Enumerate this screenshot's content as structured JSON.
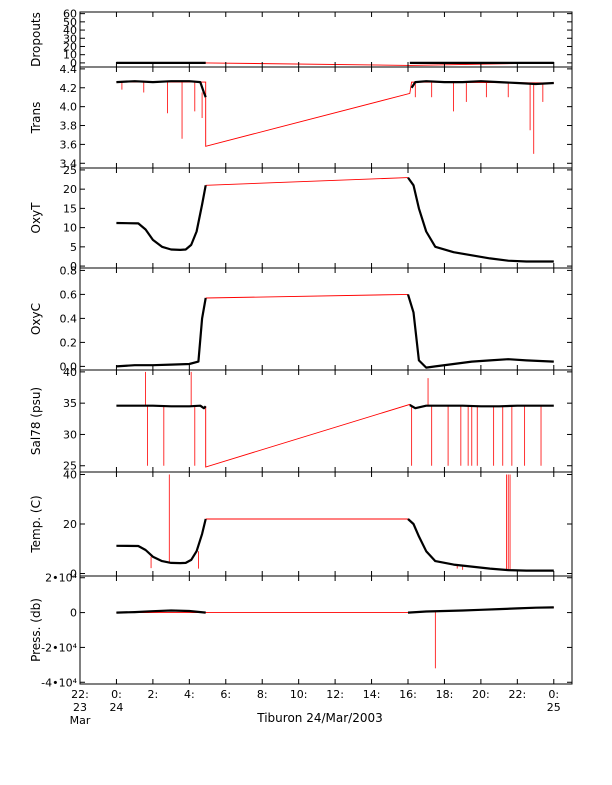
{
  "chart_data": {
    "type": "line",
    "xlabel": "Tiburon 24/Mar/2003",
    "xlim": [
      -2,
      25
    ],
    "x_ticks": [
      {
        "value": -2,
        "line1": "22:",
        "line2": "23",
        "line3": "Mar"
      },
      {
        "value": 0,
        "line1": "0:",
        "line2": "24",
        "line3": ""
      },
      {
        "value": 2,
        "line1": "2:",
        "line2": "",
        "line3": ""
      },
      {
        "value": 4,
        "line1": "4:",
        "line2": "",
        "line3": ""
      },
      {
        "value": 6,
        "line1": "6:",
        "line2": "",
        "line3": ""
      },
      {
        "value": 8,
        "line1": "8:",
        "line2": "",
        "line3": ""
      },
      {
        "value": 10,
        "line1": "10:",
        "line2": "",
        "line3": ""
      },
      {
        "value": 12,
        "line1": "12:",
        "line2": "",
        "line3": ""
      },
      {
        "value": 14,
        "line1": "14:",
        "line2": "",
        "line3": ""
      },
      {
        "value": 16,
        "line1": "16:",
        "line2": "",
        "line3": ""
      },
      {
        "value": 18,
        "line1": "18:",
        "line2": "",
        "line3": ""
      },
      {
        "value": 20,
        "line1": "20:",
        "line2": "",
        "line3": ""
      },
      {
        "value": 22,
        "line1": "22:",
        "line2": "",
        "line3": ""
      },
      {
        "value": 24,
        "line1": "0:",
        "line2": "25",
        "line3": ""
      }
    ],
    "colors": {
      "measured": "#000000",
      "raw": "#ff0000"
    },
    "panels": [
      {
        "ylabel": "Dropouts",
        "ylim": [
          -5,
          62
        ],
        "y_ticks": [
          {
            "value": 0,
            "label": "0"
          },
          {
            "value": 10,
            "label": "10"
          },
          {
            "value": 20,
            "label": "20"
          },
          {
            "value": 30,
            "label": "30"
          },
          {
            "value": 40,
            "label": "40"
          },
          {
            "value": 50,
            "label": "50"
          },
          {
            "value": 60,
            "label": "60"
          }
        ],
        "raw_line": [
          [
            0,
            0
          ],
          [
            4.9,
            0
          ],
          [
            16.1,
            -3
          ],
          [
            24,
            0
          ]
        ],
        "measured": [
          [
            0,
            0
          ],
          [
            1,
            0
          ],
          [
            2,
            0
          ],
          [
            3,
            0
          ],
          [
            4,
            0
          ],
          [
            4.9,
            0
          ],
          [
            16.1,
            0
          ],
          [
            17,
            0
          ],
          [
            18,
            0
          ],
          [
            19,
            0
          ],
          [
            20,
            0
          ],
          [
            21,
            0
          ],
          [
            22,
            0
          ],
          [
            23,
            0
          ],
          [
            24,
            0
          ]
        ],
        "spikes": []
      },
      {
        "ylabel": "Trans",
        "ylim": [
          3.35,
          4.42
        ],
        "y_ticks": [
          {
            "value": 3.4,
            "label": "3.4"
          },
          {
            "value": 3.6,
            "label": "3.6"
          },
          {
            "value": 3.8,
            "label": "3.8"
          },
          {
            "value": 4.0,
            "label": "4.0"
          },
          {
            "value": 4.2,
            "label": "4.2"
          },
          {
            "value": 4.4,
            "label": "4.4"
          }
        ],
        "raw_line": [
          [
            0,
            4.26
          ],
          [
            4.9,
            4.26
          ],
          [
            4.9,
            3.58
          ],
          [
            16.1,
            4.14
          ],
          [
            16.2,
            4.26
          ],
          [
            24,
            4.25
          ]
        ],
        "measured": [
          [
            0,
            4.26
          ],
          [
            1,
            4.27
          ],
          [
            2,
            4.26
          ],
          [
            3,
            4.27
          ],
          [
            4,
            4.27
          ],
          [
            4.6,
            4.26
          ],
          [
            4.8,
            4.15
          ],
          [
            4.9,
            4.1
          ],
          [
            16.2,
            4.2
          ],
          [
            16.4,
            4.26
          ],
          [
            17,
            4.27
          ],
          [
            18,
            4.26
          ],
          [
            19,
            4.26
          ],
          [
            20,
            4.27
          ],
          [
            21,
            4.26
          ],
          [
            22,
            4.25
          ],
          [
            23,
            4.24
          ],
          [
            24,
            4.25
          ]
        ],
        "spikes": [
          [
            0.3,
            4.18
          ],
          [
            1.5,
            4.15
          ],
          [
            2.8,
            3.93
          ],
          [
            3.6,
            3.66
          ],
          [
            4.3,
            3.95
          ],
          [
            4.7,
            3.88
          ],
          [
            16.4,
            4.1
          ],
          [
            17.3,
            4.1
          ],
          [
            18.5,
            3.95
          ],
          [
            19.2,
            4.05
          ],
          [
            20.3,
            4.1
          ],
          [
            21.5,
            4.1
          ],
          [
            22.7,
            3.75
          ],
          [
            22.9,
            3.5
          ],
          [
            23.4,
            4.05
          ]
        ]
      },
      {
        "ylabel": "OxyT",
        "ylim": [
          -0.5,
          25.5
        ],
        "y_ticks": [
          {
            "value": 0,
            "label": "0"
          },
          {
            "value": 5,
            "label": "5"
          },
          {
            "value": 10,
            "label": "10"
          },
          {
            "value": 15,
            "label": "15"
          },
          {
            "value": 20,
            "label": "20"
          },
          {
            "value": 25,
            "label": "25"
          }
        ],
        "raw_line": [
          [
            4.9,
            21
          ],
          [
            16.0,
            23
          ]
        ],
        "measured": [
          [
            0,
            11.2
          ],
          [
            1.2,
            11.1
          ],
          [
            1.6,
            9.5
          ],
          [
            2.0,
            6.8
          ],
          [
            2.5,
            5.0
          ],
          [
            3.0,
            4.3
          ],
          [
            3.5,
            4.2
          ],
          [
            3.8,
            4.3
          ],
          [
            4.1,
            5.5
          ],
          [
            4.4,
            9
          ],
          [
            4.7,
            16
          ],
          [
            4.9,
            21
          ],
          [
            16.0,
            23
          ],
          [
            16.3,
            21
          ],
          [
            16.6,
            15
          ],
          [
            17.0,
            9
          ],
          [
            17.5,
            5
          ],
          [
            18.5,
            3.6
          ],
          [
            19.5,
            2.8
          ],
          [
            20.5,
            2.0
          ],
          [
            21.5,
            1.4
          ],
          [
            22.5,
            1.2
          ],
          [
            24,
            1.2
          ]
        ],
        "spikes": []
      },
      {
        "ylabel": "OxyC",
        "ylim": [
          -0.03,
          0.82
        ],
        "y_ticks": [
          {
            "value": 0,
            "label": "0.0"
          },
          {
            "value": 0.2,
            "label": "0.2"
          },
          {
            "value": 0.4,
            "label": "0.4"
          },
          {
            "value": 0.6,
            "label": "0.6"
          },
          {
            "value": 0.8,
            "label": "0.8"
          }
        ],
        "raw_line": [
          [
            4.9,
            0.57
          ],
          [
            16.0,
            0.6
          ]
        ],
        "measured": [
          [
            0,
            0.0
          ],
          [
            1,
            0.01
          ],
          [
            2,
            0.01
          ],
          [
            3,
            0.015
          ],
          [
            4,
            0.02
          ],
          [
            4.5,
            0.04
          ],
          [
            4.7,
            0.4
          ],
          [
            4.9,
            0.57
          ],
          [
            16.0,
            0.6
          ],
          [
            16.3,
            0.45
          ],
          [
            16.6,
            0.05
          ],
          [
            17.0,
            -0.01
          ],
          [
            17.5,
            0.0
          ],
          [
            18.5,
            0.02
          ],
          [
            19.5,
            0.04
          ],
          [
            20.5,
            0.05
          ],
          [
            21.5,
            0.06
          ],
          [
            22.5,
            0.05
          ],
          [
            24,
            0.04
          ]
        ],
        "spikes": []
      },
      {
        "ylabel": "Sal78 (psu)",
        "ylim": [
          24,
          40.3
        ],
        "y_ticks": [
          {
            "value": 25,
            "label": "25"
          },
          {
            "value": 30,
            "label": "30"
          },
          {
            "value": 35,
            "label": "35"
          },
          {
            "value": 40,
            "label": "40"
          }
        ],
        "raw_line": [
          [
            4.9,
            34.5
          ],
          [
            4.9,
            24.8
          ],
          [
            16.1,
            34.8
          ],
          [
            16.3,
            34.4
          ]
        ],
        "measured": [
          [
            0,
            34.6
          ],
          [
            1,
            34.6
          ],
          [
            2,
            34.6
          ],
          [
            3,
            34.5
          ],
          [
            4,
            34.5
          ],
          [
            4.6,
            34.6
          ],
          [
            4.8,
            34.2
          ],
          [
            4.9,
            34.5
          ],
          [
            16.1,
            34.7
          ],
          [
            16.4,
            34.2
          ],
          [
            17,
            34.6
          ],
          [
            18,
            34.6
          ],
          [
            19,
            34.6
          ],
          [
            20,
            34.5
          ],
          [
            21,
            34.5
          ],
          [
            22,
            34.6
          ],
          [
            23,
            34.6
          ],
          [
            24,
            34.6
          ]
        ],
        "spikes": [
          [
            1.6,
            40
          ],
          [
            1.7,
            25
          ],
          [
            2.6,
            25
          ],
          [
            4.1,
            40
          ],
          [
            4.3,
            25
          ],
          [
            16.2,
            25
          ],
          [
            17.1,
            39
          ],
          [
            17.3,
            25
          ],
          [
            18.2,
            25
          ],
          [
            18.9,
            25
          ],
          [
            19.3,
            25
          ],
          [
            19.5,
            25
          ],
          [
            19.8,
            25
          ],
          [
            20.7,
            25
          ],
          [
            21.2,
            25
          ],
          [
            21.7,
            25
          ],
          [
            22.4,
            25
          ],
          [
            23.3,
            25
          ]
        ]
      },
      {
        "ylabel": "Temp. (C)",
        "ylim": [
          -1,
          41
        ],
        "y_ticks": [
          {
            "value": 0,
            "label": "0"
          },
          {
            "value": 20,
            "label": "20"
          },
          {
            "value": 40,
            "label": "40"
          }
        ],
        "raw_line": [
          [
            4.9,
            22
          ],
          [
            16.0,
            22
          ]
        ],
        "measured": [
          [
            0,
            11.2
          ],
          [
            1.2,
            11.1
          ],
          [
            1.6,
            9.5
          ],
          [
            2.0,
            6.8
          ],
          [
            2.5,
            5.0
          ],
          [
            3.0,
            4.3
          ],
          [
            3.5,
            4.2
          ],
          [
            3.8,
            4.3
          ],
          [
            4.1,
            5.5
          ],
          [
            4.4,
            9
          ],
          [
            4.7,
            16
          ],
          [
            4.9,
            22
          ],
          [
            16.0,
            22
          ],
          [
            16.3,
            20
          ],
          [
            16.6,
            15
          ],
          [
            17.0,
            9
          ],
          [
            17.5,
            5
          ],
          [
            18.5,
            3.6
          ],
          [
            19.5,
            2.8
          ],
          [
            20.5,
            2.0
          ],
          [
            21.5,
            1.4
          ],
          [
            22.5,
            1.2
          ],
          [
            24,
            1.2
          ]
        ],
        "spikes": [
          [
            1.9,
            2.2
          ],
          [
            2.9,
            40
          ],
          [
            4.5,
            2.0
          ],
          [
            18.7,
            2
          ],
          [
            19.0,
            1.5
          ],
          [
            21.4,
            40
          ],
          [
            21.5,
            40
          ],
          [
            21.6,
            40
          ]
        ]
      },
      {
        "ylabel": "Press. (db)",
        "ylim": [
          -41000,
          21000
        ],
        "y_ticks": [
          {
            "value": -40000,
            "label": "-4•10⁴"
          },
          {
            "value": -20000,
            "label": "-2•10⁴"
          },
          {
            "value": 0,
            "label": "0"
          },
          {
            "value": 20000,
            "label": "2•10⁴"
          }
        ],
        "raw_line": [
          [
            0,
            0
          ],
          [
            4.9,
            0
          ],
          [
            16.0,
            0
          ],
          [
            24,
            3000
          ]
        ],
        "measured": [
          [
            0,
            0
          ],
          [
            1,
            300
          ],
          [
            2,
            800
          ],
          [
            3,
            1200
          ],
          [
            4,
            900
          ],
          [
            4.9,
            0
          ],
          [
            16.0,
            0
          ],
          [
            17,
            600
          ],
          [
            18,
            900
          ],
          [
            19,
            1200
          ],
          [
            20,
            1600
          ],
          [
            21,
            2000
          ],
          [
            22,
            2400
          ],
          [
            23,
            2800
          ],
          [
            24,
            3000
          ]
        ],
        "spikes": [
          [
            17.5,
            -32000
          ]
        ]
      }
    ]
  }
}
